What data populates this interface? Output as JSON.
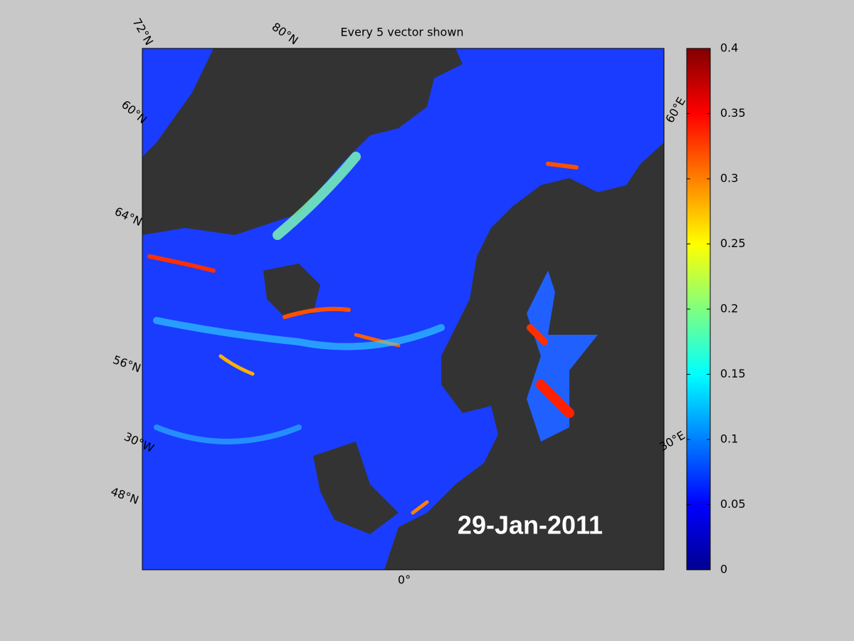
{
  "title": "Every 5 vector shown",
  "date_label": "29-Jan-2011",
  "map_labels": {
    "lat_72": "72°N",
    "lat_80": "80°N",
    "lat_60": "60°N",
    "lat_64": "64°N",
    "lat_56": "56°N",
    "lon_30w": "30°W",
    "lat_48": "48°N",
    "lon_0": "0°",
    "lon_30e": "30°E",
    "lon_60e": "60°E"
  },
  "colorbar": {
    "lim": [
      0,
      0.4
    ],
    "ticks": [
      0,
      0.05,
      0.1,
      0.15,
      0.2,
      0.25,
      0.3,
      0.35,
      0.4
    ]
  }
}
